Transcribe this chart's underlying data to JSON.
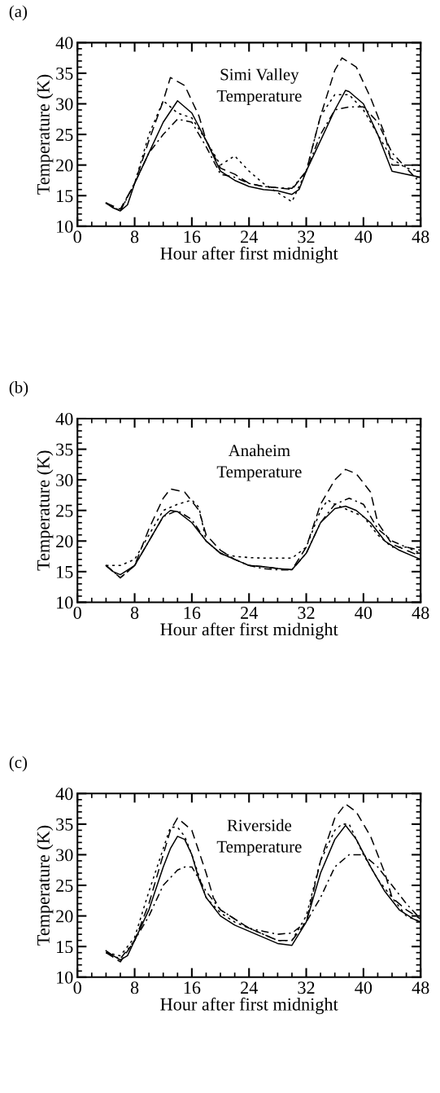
{
  "chart_data": [
    {
      "type": "line",
      "title": "(a)",
      "xlabel": "Hour after first midnight",
      "ylabel": "Temperature (K)",
      "annotations": [
        "Simi Valley\nTemperature"
      ],
      "xlim": [
        0,
        48
      ],
      "ylim": [
        10,
        40
      ],
      "xticks": [
        0,
        8,
        16,
        24,
        32,
        40,
        48
      ],
      "yticks": [
        10,
        15,
        20,
        25,
        30,
        35,
        40
      ],
      "grid": false,
      "marker": "none",
      "series": [
        {
          "color": "#000000",
          "line_style": "solid",
          "x": [
            4,
            5,
            6,
            7,
            8,
            10,
            12,
            14,
            16,
            18,
            20,
            22,
            24,
            26,
            28,
            30,
            31,
            32,
            34,
            36,
            37.5,
            38,
            40,
            42,
            44,
            46,
            48
          ],
          "values": [
            13.8,
            13,
            12.5,
            13.5,
            17,
            22,
            27,
            30.5,
            28.5,
            24,
            19,
            17.5,
            16.5,
            16,
            15.8,
            15.2,
            16,
            19,
            24,
            29,
            32.2,
            32,
            30,
            25,
            19,
            18.5,
            18
          ]
        },
        {
          "color": "#000000",
          "line_style": "dashed",
          "x": [
            4,
            6,
            8,
            10,
            12,
            13,
            15,
            17,
            18,
            20,
            22,
            24,
            26,
            28,
            30,
            32,
            34,
            36,
            37,
            39,
            41,
            43,
            44,
            46,
            48
          ],
          "values": [
            13.8,
            12.8,
            17,
            24,
            30.5,
            34.3,
            33,
            28,
            24,
            19.5,
            18.5,
            17,
            16.5,
            16.3,
            16,
            19,
            28,
            35.5,
            37.5,
            36,
            31,
            25,
            20,
            20,
            20
          ]
        },
        {
          "color": "#000000",
          "line_style": "dotted",
          "x": [
            4,
            6,
            8,
            10,
            12,
            14,
            16,
            18,
            20,
            22,
            24,
            26,
            28,
            30,
            32,
            34,
            36,
            38,
            40,
            42,
            44,
            46,
            48
          ],
          "values": [
            13.8,
            12.5,
            17,
            25,
            30.5,
            28.5,
            27.7,
            24,
            20,
            21.5,
            19,
            17,
            15.5,
            14,
            19,
            28,
            31.5,
            31.5,
            29,
            25,
            21,
            19.5,
            19
          ]
        },
        {
          "color": "#000000",
          "line_style": "dashdot",
          "x": [
            4,
            6,
            8,
            10,
            12,
            14,
            16,
            18,
            20,
            22,
            24,
            26,
            28,
            30,
            32,
            34,
            36,
            38,
            40,
            42,
            44,
            46,
            48
          ],
          "values": [
            13.8,
            12.5,
            17,
            22,
            25,
            27.5,
            27,
            23,
            18.5,
            18,
            17,
            16.5,
            16.3,
            16.2,
            19,
            25,
            29,
            29.5,
            29.5,
            27,
            22,
            19.5,
            17
          ]
        }
      ]
    },
    {
      "type": "line",
      "title": "(b)",
      "xlabel": "Hour after first midnight",
      "ylabel": "Temperature (K)",
      "annotations": [
        "Anaheim\nTemperature"
      ],
      "xlim": [
        0,
        48
      ],
      "ylim": [
        10,
        40
      ],
      "xticks": [
        0,
        8,
        16,
        24,
        32,
        40,
        48
      ],
      "yticks": [
        10,
        15,
        20,
        25,
        30,
        35,
        40
      ],
      "grid": false,
      "marker": "none",
      "series": [
        {
          "color": "#000000",
          "line_style": "solid",
          "x": [
            4,
            5,
            6,
            8,
            10,
            12,
            13,
            14,
            16,
            18,
            20,
            22,
            24,
            26,
            28,
            30,
            32,
            34,
            36,
            37.5,
            39,
            41,
            43,
            45,
            47,
            48
          ],
          "values": [
            16,
            15,
            14.5,
            16,
            20,
            24,
            25,
            24.8,
            23,
            20,
            18,
            17,
            16,
            15.8,
            15.5,
            15.3,
            18,
            23,
            25.3,
            25.7,
            25,
            23,
            20,
            18.5,
            17.5,
            17
          ]
        },
        {
          "color": "#000000",
          "line_style": "dashed",
          "x": [
            4,
            6,
            8,
            10,
            12,
            13,
            15,
            17,
            18,
            20,
            22,
            24,
            26,
            28,
            30,
            32,
            34,
            36,
            37.5,
            39,
            41,
            42,
            44,
            46,
            48
          ],
          "values": [
            16,
            14,
            16,
            22,
            27,
            28.5,
            28,
            25,
            21,
            18.5,
            17,
            16,
            15.8,
            15.5,
            15.3,
            19,
            26,
            30,
            31.7,
            31,
            28,
            23,
            19.5,
            18.5,
            17.5
          ]
        },
        {
          "color": "#000000",
          "line_style": "dotted",
          "x": [
            4,
            6,
            8,
            10,
            12,
            14,
            16,
            17,
            18,
            20,
            22,
            24,
            26,
            28,
            30,
            32,
            34,
            35,
            36,
            38,
            40,
            42,
            44,
            46,
            48
          ],
          "values": [
            16,
            16,
            17,
            21,
            25,
            26,
            26.7,
            25.5,
            20,
            18,
            17.5,
            17.3,
            17.2,
            17.2,
            17.2,
            19,
            25,
            26.7,
            26,
            25,
            24,
            21,
            19,
            19,
            18
          ]
        },
        {
          "color": "#000000",
          "line_style": "dashdot",
          "x": [
            4,
            6,
            8,
            10,
            12,
            14,
            16,
            18,
            20,
            22,
            24,
            26,
            28,
            30,
            32,
            34,
            36,
            38,
            40,
            42,
            44,
            46,
            48
          ],
          "values": [
            16,
            14,
            16,
            20,
            24,
            25,
            23.5,
            20,
            18,
            17,
            16,
            15.5,
            15.3,
            15.3,
            18,
            23,
            26,
            27,
            26,
            22,
            20,
            19,
            18.5
          ]
        }
      ]
    },
    {
      "type": "line",
      "title": "(c)",
      "xlabel": "Hour after first midnight",
      "ylabel": "Temperature (K)",
      "annotations": [
        "Riverside\nTemperature"
      ],
      "xlim": [
        0,
        48
      ],
      "ylim": [
        10,
        40
      ],
      "xticks": [
        0,
        8,
        16,
        24,
        32,
        40,
        48
      ],
      "yticks": [
        10,
        15,
        20,
        25,
        30,
        35,
        40
      ],
      "grid": false,
      "marker": "none",
      "series": [
        {
          "color": "#000000",
          "line_style": "solid",
          "x": [
            4,
            5,
            6,
            7,
            8,
            10,
            12,
            13,
            14,
            15,
            16,
            17,
            18,
            20,
            22,
            24,
            26,
            28,
            30,
            32,
            34,
            36,
            37.5,
            39,
            41,
            43,
            45,
            47,
            48
          ],
          "values": [
            14.3,
            13.5,
            12.8,
            13.5,
            16,
            21,
            28,
            31,
            33,
            32.5,
            30,
            26,
            23,
            20,
            18.5,
            17.5,
            16.5,
            15.5,
            15.2,
            19,
            27,
            32.5,
            34.8,
            32.5,
            28,
            24,
            21,
            19.5,
            19
          ]
        },
        {
          "color": "#000000",
          "line_style": "dashed",
          "x": [
            4,
            6,
            8,
            10,
            12,
            13,
            14,
            16,
            18,
            19,
            20,
            22,
            24,
            26,
            28,
            30,
            32,
            34,
            36,
            37.5,
            39,
            41,
            43,
            44,
            46,
            48
          ],
          "values": [
            14,
            12.5,
            16,
            22,
            30,
            34,
            36,
            34,
            27,
            23,
            21,
            19.5,
            18,
            17,
            16,
            16,
            19,
            29,
            36,
            38.3,
            37,
            33,
            27,
            23,
            21,
            19.5
          ]
        },
        {
          "color": "#000000",
          "line_style": "dotted",
          "x": [
            4,
            6,
            8,
            10,
            12,
            13,
            14,
            15,
            16,
            18,
            20,
            22,
            24,
            26,
            28,
            30,
            32,
            34,
            36,
            37,
            38,
            40,
            42,
            44,
            46,
            48
          ],
          "values": [
            14,
            13.5,
            16.5,
            24,
            31,
            34.5,
            34.5,
            33,
            30,
            23,
            20.5,
            19,
            18,
            17,
            16,
            16,
            20,
            29,
            34,
            35,
            35,
            30,
            26,
            23,
            20,
            19
          ]
        },
        {
          "color": "#000000",
          "line_style": "dashdot",
          "x": [
            4,
            6,
            8,
            10,
            12,
            14,
            15,
            16,
            18,
            20,
            22,
            24,
            26,
            28,
            30,
            32,
            34,
            36,
            38,
            40,
            42,
            44,
            46,
            48
          ],
          "values": [
            14,
            13,
            16,
            20,
            25,
            27.5,
            28,
            28,
            24,
            21,
            19.5,
            18,
            17.5,
            17,
            17.2,
            19,
            23,
            28,
            30,
            30,
            28,
            25,
            22,
            19.5
          ]
        }
      ]
    }
  ]
}
